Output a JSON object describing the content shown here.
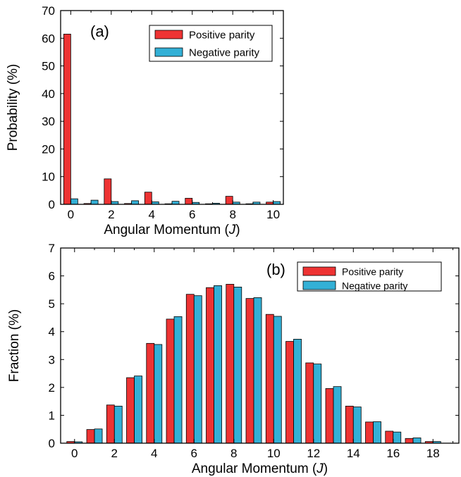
{
  "colors": {
    "positive": "#ee3333",
    "negative": "#33b0d6",
    "stroke": "#000000"
  },
  "chart_data": [
    {
      "type": "bar",
      "panel_label": "(a)",
      "xlabel": "Angular Momentum",
      "xlabel_var": "J",
      "ylabel": "Probability (%)",
      "ylim": [
        0,
        70
      ],
      "yticks": [
        0,
        10,
        20,
        30,
        40,
        50,
        60,
        70
      ],
      "xticks": [
        0,
        2,
        4,
        6,
        8,
        10
      ],
      "legend_position": "top-right",
      "x": [
        0,
        1,
        2,
        3,
        4,
        5,
        6,
        7,
        8,
        9,
        10
      ],
      "series": [
        {
          "name": "Positive parity",
          "color_key": "positive",
          "values": [
            61.5,
            0.3,
            9.2,
            0.3,
            4.4,
            0.2,
            2.2,
            0.2,
            2.9,
            0.2,
            0.8
          ]
        },
        {
          "name": "Negative parity",
          "color_key": "negative",
          "values": [
            2.0,
            1.5,
            1.0,
            1.3,
            0.9,
            1.1,
            0.7,
            0.4,
            0.8,
            0.8,
            1.0
          ]
        }
      ]
    },
    {
      "type": "bar",
      "panel_label": "(b)",
      "xlabel": "Angular Momentum",
      "xlabel_var": "J",
      "ylabel": "Fraction (%)",
      "ylim": [
        0,
        7
      ],
      "yticks": [
        0,
        1,
        2,
        3,
        4,
        5,
        6,
        7
      ],
      "xticks": [
        0,
        2,
        4,
        6,
        8,
        10,
        12,
        14,
        16,
        18
      ],
      "legend_position": "top-right",
      "x": [
        0,
        1,
        2,
        3,
        4,
        5,
        6,
        7,
        8,
        9,
        10,
        11,
        12,
        13,
        14,
        15,
        16,
        17,
        18
      ],
      "series": [
        {
          "name": "Positive parity",
          "color_key": "positive",
          "values": [
            0.06,
            0.49,
            1.37,
            2.35,
            3.58,
            4.45,
            5.34,
            5.58,
            5.7,
            5.19,
            4.62,
            3.65,
            2.88,
            1.96,
            1.33,
            0.76,
            0.43,
            0.17,
            0.06
          ]
        },
        {
          "name": "Negative parity",
          "color_key": "negative",
          "values": [
            0.05,
            0.51,
            1.33,
            2.41,
            3.54,
            4.54,
            5.29,
            5.65,
            5.6,
            5.22,
            4.55,
            3.73,
            2.84,
            2.03,
            1.3,
            0.77,
            0.4,
            0.19,
            0.06
          ]
        }
      ]
    }
  ]
}
